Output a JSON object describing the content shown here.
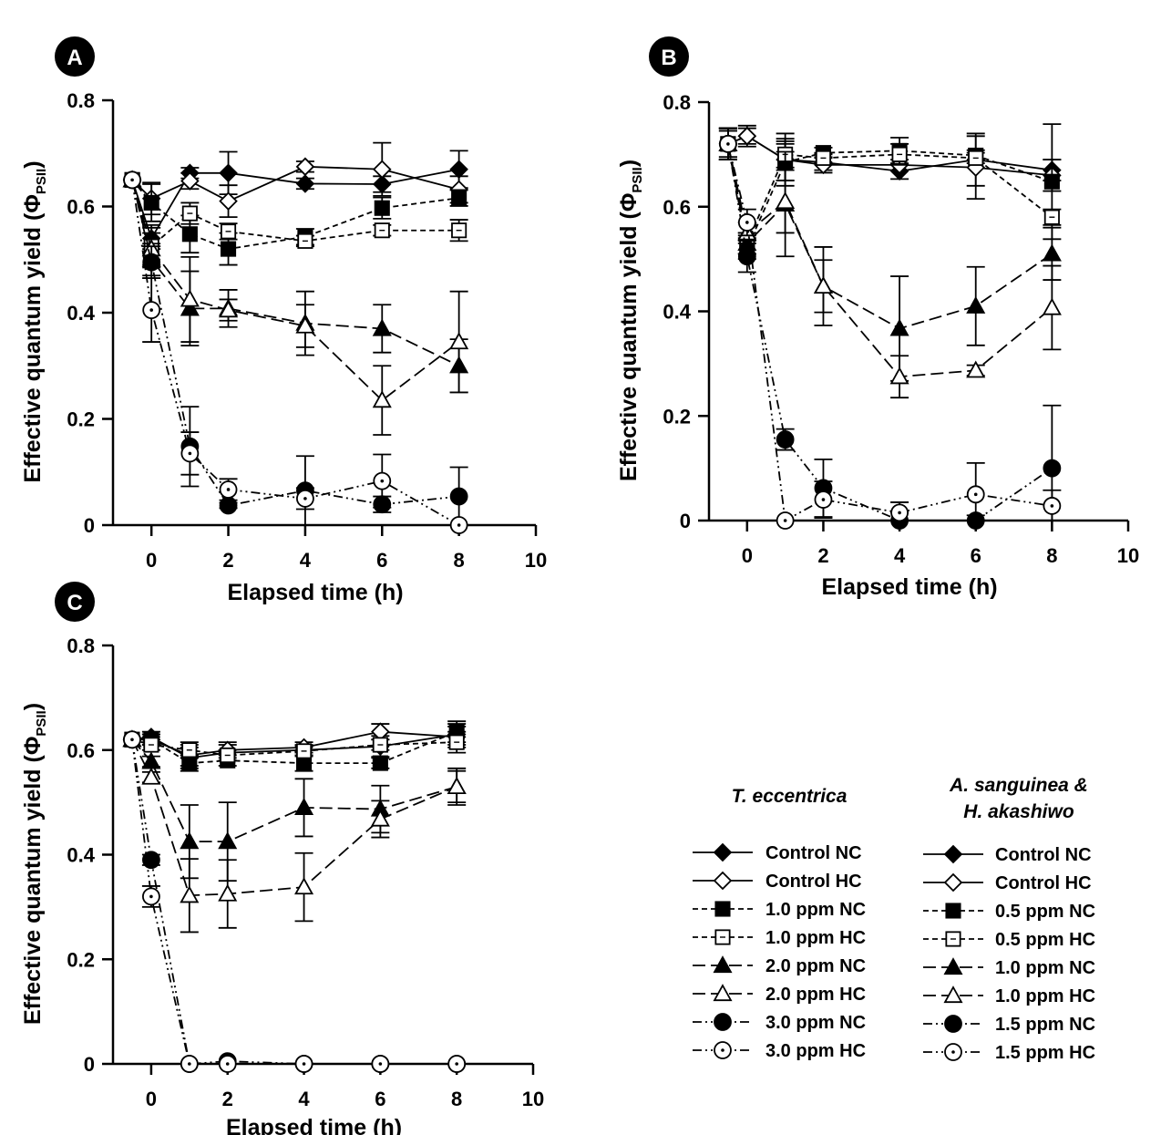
{
  "chart_data": [
    {
      "type": "line",
      "panel": "A",
      "xlabel": "Elapsed time (h)",
      "ylabel": "Effective quantum yield (Φ",
      "ylabel_sub": "PSII",
      "ylabel_close": ")",
      "xlim": [
        -1,
        10
      ],
      "ylim": [
        0,
        0.8
      ],
      "xticks": [
        "0",
        "2",
        "4",
        "6",
        "8",
        "10"
      ],
      "yticks": [
        "0",
        "0.2",
        "0.4",
        "0.6",
        "0.8"
      ],
      "x": [
        -0.5,
        0,
        1,
        2,
        4,
        6,
        8
      ],
      "series": [
        {
          "name": "Control NC",
          "style": "solid",
          "marker": "diamond",
          "filled": true,
          "values": [
            0.65,
            0.54,
            0.663,
            0.663,
            0.643,
            0.642,
            0.67
          ],
          "errors": [
            0,
            0.02,
            0.01,
            0.04,
            0.01,
            0.015,
            0.035
          ]
        },
        {
          "name": "Control HC",
          "style": "solid",
          "marker": "diamond",
          "filled": false,
          "values": [
            0.65,
            0.615,
            0.648,
            0.61,
            0.675,
            0.67,
            0.632
          ],
          "errors": [
            0,
            0.03,
            0.015,
            0.03,
            0.01,
            0.05,
            0.025
          ]
        },
        {
          "name": "1.0 ppm NC",
          "style": "dash",
          "marker": "square",
          "filled": true,
          "values": [
            0.65,
            0.607,
            0.548,
            0.52,
            0.543,
            0.597,
            0.616
          ],
          "errors": [
            0,
            0.035,
            0.035,
            0.03,
            0.015,
            0.02,
            0.015
          ]
        },
        {
          "name": "1.0 ppm HC",
          "style": "dash",
          "marker": "square",
          "filled": false,
          "values": [
            0.65,
            0.525,
            0.587,
            0.553,
            0.535,
            0.555,
            0.555
          ],
          "errors": [
            0,
            0.04,
            0.02,
            0.015,
            0.01,
            0.01,
            0.02
          ]
        },
        {
          "name": "2.0 ppm NC",
          "style": "longdash",
          "marker": "triangle",
          "filled": true,
          "values": [
            0.65,
            0.5,
            0.408,
            0.408,
            0.38,
            0.37,
            0.3
          ],
          "errors": [
            0,
            0.03,
            0.07,
            0.035,
            0.06,
            0.045,
            0.05
          ]
        },
        {
          "name": "2.0 ppm HC",
          "style": "longdash",
          "marker": "triangle",
          "filled": false,
          "values": [
            0.65,
            0.52,
            0.425,
            0.405,
            0.375,
            0.235,
            0.345
          ],
          "errors": [
            0,
            0.03,
            0.08,
            0.02,
            0.04,
            0.065,
            0.095
          ]
        },
        {
          "name": "3.0 ppm NC",
          "style": "dashdotdot",
          "marker": "circle",
          "filled": true,
          "values": [
            0.65,
            0.495,
            0.148,
            0.037,
            0.065,
            0.039,
            0.054
          ],
          "errors": [
            0,
            0.03,
            0.075,
            0.005,
            0.065,
            0.015,
            0.055
          ]
        },
        {
          "name": "3.0 ppm HC",
          "style": "dashdotdot",
          "marker": "circle-dot",
          "filled": false,
          "values": [
            0.65,
            0.405,
            0.135,
            0.067,
            0.05,
            0.083,
            0
          ],
          "errors": [
            0,
            0.06,
            0.04,
            0.02,
            0.02,
            0.05,
            0
          ]
        }
      ]
    },
    {
      "type": "line",
      "panel": "B",
      "xlabel": "Elapsed time (h)",
      "ylabel": "Effective quantum yield (Φ",
      "ylabel_sub": "PSII",
      "ylabel_close": ")",
      "xlim": [
        -1,
        10
      ],
      "ylim": [
        0,
        0.8
      ],
      "xticks": [
        "0",
        "2",
        "4",
        "6",
        "8",
        "10"
      ],
      "yticks": [
        "0",
        "0.2",
        "0.4",
        "0.6",
        "0.8"
      ],
      "x": [
        -0.5,
        0,
        1,
        2,
        4,
        6,
        8
      ],
      "series": [
        {
          "name": "Control NC",
          "style": "solid",
          "marker": "diamond",
          "filled": true,
          "values": [
            0.72,
            0.735,
            0.69,
            0.685,
            0.668,
            0.69,
            0.67
          ],
          "errors": [
            0.025,
            0.015,
            0.05,
            0.015,
            0.015,
            0.05,
            0.02
          ]
        },
        {
          "name": "Control HC",
          "style": "solid",
          "marker": "diamond",
          "filled": false,
          "values": [
            0.72,
            0.735,
            0.69,
            0.68,
            0.68,
            0.675,
            0.66
          ],
          "errors": [
            0.025,
            0.02,
            0.04,
            0.015,
            0.01,
            0.06,
            0.03
          ]
        },
        {
          "name": "0.5 ppm NC",
          "style": "dash",
          "marker": "square",
          "filled": true,
          "values": [
            0.72,
            0.52,
            0.685,
            0.703,
            0.707,
            0.698,
            0.648
          ],
          "errors": [
            0.03,
            0.02,
            0.035,
            0.01,
            0.025,
            0.01,
            0.11
          ]
        },
        {
          "name": "0.5 ppm HC",
          "style": "dash",
          "marker": "square",
          "filled": false,
          "values": [
            0.72,
            0.53,
            0.7,
            0.693,
            0.7,
            0.693,
            0.58
          ],
          "errors": [
            0.03,
            0.02,
            0.025,
            0.01,
            0.02,
            0.01,
            0.015
          ]
        },
        {
          "name": "1.0 ppm NC",
          "style": "longdash",
          "marker": "triangle",
          "filled": true,
          "values": [
            0.72,
            0.53,
            0.605,
            0.448,
            0.367,
            0.41,
            0.51
          ],
          "errors": [
            0.03,
            0.02,
            0.1,
            0.075,
            0.1,
            0.075,
            0.05
          ]
        },
        {
          "name": "1.0 ppm HC",
          "style": "longdash",
          "marker": "triangle",
          "filled": false,
          "values": [
            0.72,
            0.55,
            0.61,
            0.448,
            0.275,
            0.287,
            0.407
          ],
          "errors": [
            0.03,
            0.02,
            0.06,
            0.05,
            0.04,
            0.01,
            0.08
          ]
        },
        {
          "name": "1.5 ppm NC",
          "style": "dashdotdot",
          "marker": "circle",
          "filled": true,
          "values": [
            0.72,
            0.505,
            0.155,
            0.062,
            0,
            0,
            0.1
          ],
          "errors": [
            0.03,
            0.03,
            0.02,
            0.055,
            0.015,
            0.01,
            0.12
          ]
        },
        {
          "name": "1.5 ppm HC",
          "style": "dashdotdot",
          "marker": "circle-dot",
          "filled": false,
          "values": [
            0.72,
            0.57,
            0,
            0.04,
            0.015,
            0.05,
            0.028
          ],
          "errors": [
            0.03,
            0.025,
            0,
            0.035,
            0.02,
            0.06,
            0.03
          ]
        }
      ]
    },
    {
      "type": "line",
      "panel": "C",
      "xlabel": "Elapsed time (h)",
      "ylabel": "Effective quantum yield (Φ",
      "ylabel_sub": "PSII",
      "ylabel_close": ")",
      "xlim": [
        -1,
        10
      ],
      "ylim": [
        0,
        0.8
      ],
      "xticks": [
        "0",
        "2",
        "4",
        "6",
        "8",
        "10"
      ],
      "yticks": [
        "0",
        "0.2",
        "0.4",
        "0.6",
        "0.8"
      ],
      "x": [
        -0.5,
        0,
        1,
        2,
        4,
        6,
        8
      ],
      "series": [
        {
          "name": "Control NC",
          "style": "solid",
          "marker": "diamond",
          "filled": true,
          "values": [
            0.62,
            0.625,
            0.585,
            0.595,
            0.6,
            0.607,
            0.63
          ],
          "errors": [
            0,
            0.01,
            0.02,
            0.015,
            0.01,
            0.02,
            0.02
          ]
        },
        {
          "name": "Control HC",
          "style": "solid",
          "marker": "diamond",
          "filled": false,
          "values": [
            0.62,
            0.62,
            0.59,
            0.6,
            0.605,
            0.635,
            0.625
          ],
          "errors": [
            0,
            0.01,
            0.02,
            0.015,
            0.01,
            0.015,
            0.02
          ]
        },
        {
          "name": "1.0 ppm NC",
          "style": "dash",
          "marker": "square",
          "filled": true,
          "values": [
            0.62,
            0.62,
            0.575,
            0.58,
            0.575,
            0.575,
            0.635
          ],
          "errors": [
            0,
            0.01,
            0.015,
            0.01,
            0.015,
            0.01,
            0.02
          ]
        },
        {
          "name": "1.0 ppm HC",
          "style": "dash",
          "marker": "square",
          "filled": false,
          "values": [
            0.62,
            0.61,
            0.6,
            0.59,
            0.598,
            0.61,
            0.615
          ],
          "errors": [
            0,
            0.01,
            0.015,
            0.01,
            0.01,
            0.01,
            0.02
          ]
        },
        {
          "name": "2.0 ppm NC",
          "style": "longdash",
          "marker": "triangle",
          "filled": true,
          "values": [
            0.62,
            0.578,
            0.425,
            0.425,
            0.49,
            0.487,
            0.53
          ],
          "errors": [
            0,
            0.01,
            0.07,
            0.075,
            0.055,
            0.045,
            0.035
          ]
        },
        {
          "name": "2.0 ppm HC",
          "style": "longdash",
          "marker": "triangle",
          "filled": false,
          "values": [
            0.62,
            0.548,
            0.322,
            0.325,
            0.338,
            0.468,
            0.53
          ],
          "errors": [
            0,
            0.01,
            0.07,
            0.065,
            0.065,
            0.035,
            0.03
          ]
        },
        {
          "name": "3.0 ppm NC",
          "style": "dashdotdot",
          "marker": "circle",
          "filled": true,
          "values": [
            0.62,
            0.39,
            0,
            0.005,
            0,
            0,
            0
          ],
          "errors": [
            0,
            0.01,
            0,
            0,
            0,
            0,
            0
          ]
        },
        {
          "name": "3.0 ppm HC",
          "style": "dashdotdot",
          "marker": "circle-dot",
          "filled": false,
          "values": [
            0.62,
            0.32,
            0,
            0,
            0,
            0,
            0
          ],
          "errors": [
            0,
            0.02,
            0,
            0,
            0,
            0,
            0
          ]
        }
      ]
    }
  ],
  "legend": {
    "heading_left": "T. eccentrica",
    "heading_right_line1": "A. sanguinea &",
    "heading_right_line2": "H. akashiwo",
    "left": [
      "Control NC",
      "Control HC",
      "1.0 ppm NC",
      "1.0 ppm HC",
      "2.0 ppm NC",
      "2.0 ppm HC",
      "3.0 ppm NC",
      "3.0 ppm HC"
    ],
    "right": [
      "Control NC",
      "Control HC",
      "0.5 ppm NC",
      "0.5 ppm HC",
      "1.0 ppm NC",
      "1.0 ppm HC",
      "1.5 ppm NC",
      "1.5 ppm HC"
    ]
  }
}
